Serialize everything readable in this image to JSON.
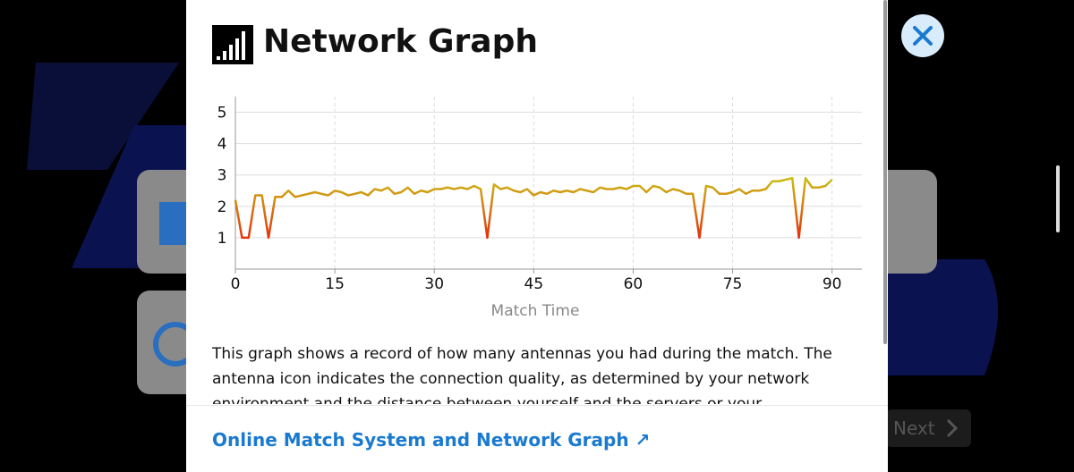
{
  "dialog": {
    "title": "Network Graph",
    "description": "This graph shows a record of how many antennas you had during the match. The antenna icon indicates the connection quality, as determined by your network environment and the distance between yourself and the servers or your opponent",
    "link": "Online Match System and Network Graph ↗"
  },
  "next_button": "Next",
  "chart_data": {
    "type": "line",
    "x_label": "Match Time",
    "x": [
      0,
      1,
      2,
      3,
      4,
      5,
      6,
      7,
      8,
      9,
      10,
      11,
      12,
      13,
      14,
      15,
      16,
      17,
      18,
      19,
      20,
      21,
      22,
      23,
      24,
      25,
      26,
      27,
      28,
      29,
      30,
      31,
      32,
      33,
      34,
      35,
      36,
      37,
      38,
      39,
      40,
      41,
      42,
      43,
      44,
      45,
      46,
      47,
      48,
      49,
      50,
      51,
      52,
      53,
      54,
      55,
      56,
      57,
      58,
      59,
      60,
      61,
      62,
      63,
      64,
      65,
      66,
      67,
      68,
      69,
      70,
      71,
      72,
      73,
      74,
      75,
      76,
      77,
      78,
      79,
      80,
      81,
      82,
      83,
      84,
      85,
      86,
      87,
      88,
      89,
      90
    ],
    "series": [
      {
        "color_scale": [
          "#e5310c",
          "#c9c415"
        ],
        "values": [
          2.2,
          1,
          1,
          2.35,
          2.35,
          1,
          2.3,
          2.3,
          2.5,
          2.3,
          2.35,
          2.4,
          2.45,
          2.4,
          2.35,
          2.5,
          2.45,
          2.35,
          2.4,
          2.45,
          2.35,
          2.55,
          2.5,
          2.6,
          2.4,
          2.45,
          2.6,
          2.4,
          2.5,
          2.45,
          2.55,
          2.55,
          2.6,
          2.55,
          2.6,
          2.55,
          2.65,
          2.55,
          1,
          2.7,
          2.55,
          2.6,
          2.5,
          2.45,
          2.55,
          2.35,
          2.45,
          2.4,
          2.5,
          2.45,
          2.5,
          2.45,
          2.55,
          2.5,
          2.45,
          2.6,
          2.55,
          2.55,
          2.6,
          2.55,
          2.65,
          2.65,
          2.45,
          2.65,
          2.6,
          2.45,
          2.55,
          2.5,
          2.4,
          2.4,
          1,
          2.65,
          2.6,
          2.4,
          2.4,
          2.45,
          2.55,
          2.4,
          2.5,
          2.5,
          2.55,
          2.8,
          2.8,
          2.85,
          2.9,
          1,
          2.9,
          2.6,
          2.6,
          2.65,
          2.85
        ]
      }
    ],
    "xlim": [
      0,
      94.5
    ],
    "ylim": [
      0,
      5.5
    ],
    "xticks": [
      0,
      15,
      30,
      45,
      60,
      75,
      90
    ],
    "yticks": [
      1,
      2,
      3,
      4,
      5
    ],
    "grid": true
  }
}
